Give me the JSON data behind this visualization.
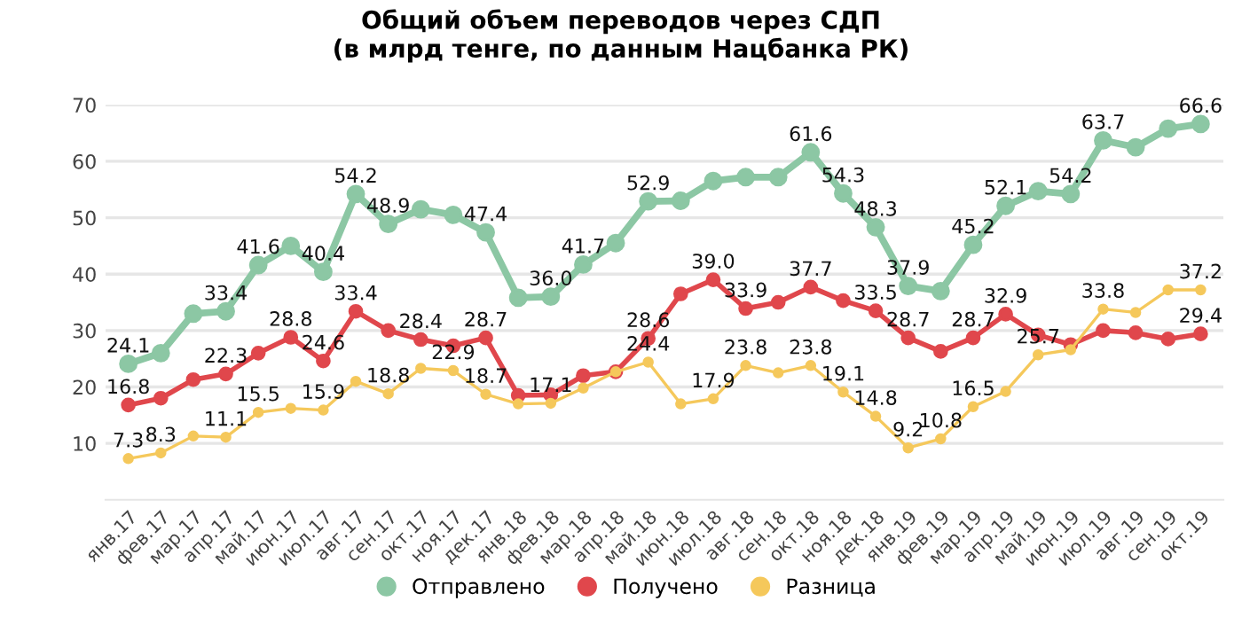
{
  "chart_data": {
    "type": "line",
    "title": "Общий объем переводов через СДП\n(в млрд тенге, по данным Нацбанка РК)",
    "categories": [
      "янв.17",
      "фев.17",
      "мар.17",
      "апр.17",
      "май.17",
      "июн.17",
      "июл.17",
      "авг.17",
      "сен.17",
      "окт.17",
      "ноя.17",
      "дек.17",
      "янв.18",
      "фев.18",
      "мар.18",
      "апр.18",
      "май.18",
      "июн.18",
      "июл.18",
      "авг.18",
      "сен.18",
      "окт.18",
      "ноя.18",
      "дек.18",
      "янв.19",
      "фев.19",
      "мар.19",
      "апр.19",
      "май.19",
      "июн.19",
      "июл.19",
      "авг.19",
      "сен.19",
      "окт.19"
    ],
    "series": [
      {
        "name": "Отправлено",
        "color": "#8cc7a4",
        "values": [
          24.1,
          26,
          33.0,
          33.4,
          41.6,
          45,
          40.4,
          54.2,
          48.9,
          51.5,
          50.5,
          47.4,
          35.8,
          36.0,
          41.7,
          45.5,
          52.9,
          53,
          56.5,
          57.2,
          57.2,
          61.6,
          54.3,
          48.3,
          37.9,
          37,
          45.2,
          52.1,
          54.7,
          54.2,
          63.7,
          62.5,
          65.8,
          66.6
        ],
        "value_labels": [
          "24.1",
          null,
          null,
          "33.4",
          "41.6",
          null,
          "40.4",
          "54.2",
          "48.9",
          null,
          null,
          "47.4",
          null,
          "36.0",
          "41.7",
          null,
          "52.9",
          null,
          null,
          null,
          null,
          "61.6",
          "54.3",
          "48.3",
          "37.9",
          null,
          "45.2",
          "52.1",
          null,
          "54.2",
          "63.7",
          null,
          null,
          "66.6"
        ]
      },
      {
        "name": "Получено",
        "color": "#e0474c",
        "values": [
          16.8,
          18,
          21.3,
          22.3,
          26,
          28.8,
          24.6,
          33.4,
          30,
          28.4,
          27.3,
          28.7,
          18.5,
          18.6,
          22,
          22.7,
          28.6,
          36.5,
          39.0,
          33.9,
          35,
          37.7,
          35.3,
          33.5,
          28.7,
          26.3,
          28.7,
          32.9,
          29.2,
          27.5,
          30,
          29.6,
          28.5,
          29.4
        ],
        "value_labels": [
          "16.8",
          null,
          null,
          "22.3",
          null,
          "28.8",
          "24.6",
          "33.4",
          null,
          "28.4",
          null,
          "28.7",
          null,
          null,
          null,
          null,
          "28.6",
          null,
          "39.0",
          "33.9",
          null,
          "37.7",
          null,
          "33.5",
          "28.7",
          null,
          "28.7",
          "32.9",
          null,
          null,
          null,
          null,
          null,
          "29.4"
        ]
      },
      {
        "name": "Разница",
        "color": "#f5c85b",
        "values": [
          7.3,
          8.3,
          11.3,
          11.1,
          15.5,
          16.2,
          15.9,
          21,
          18.8,
          23.3,
          22.9,
          18.7,
          17.0,
          17.1,
          19.8,
          22.7,
          24.4,
          17.0,
          17.9,
          23.8,
          22.5,
          23.8,
          19.1,
          14.8,
          9.2,
          10.8,
          16.5,
          19.2,
          25.7,
          26.6,
          33.8,
          33.2,
          37.2,
          37.2
        ],
        "value_labels": [
          "7.3",
          "8.3",
          null,
          "11.1",
          "15.5",
          null,
          "15.9",
          null,
          "18.8",
          null,
          "22.9",
          "18.7",
          null,
          "17.1",
          null,
          null,
          "24.4",
          null,
          "17.9",
          "23.8",
          null,
          "23.8",
          "19.1",
          "14.8",
          "9.2",
          "10.8",
          "16.5",
          null,
          "25.7",
          null,
          "33.8",
          null,
          null,
          "37.2"
        ]
      }
    ],
    "ylim": [
      0,
      70
    ],
    "yticks": [
      10,
      20,
      30,
      40,
      50,
      60,
      70
    ],
    "grid": "y",
    "legend": "bottom",
    "marker": "circle",
    "line_style": "solid"
  }
}
